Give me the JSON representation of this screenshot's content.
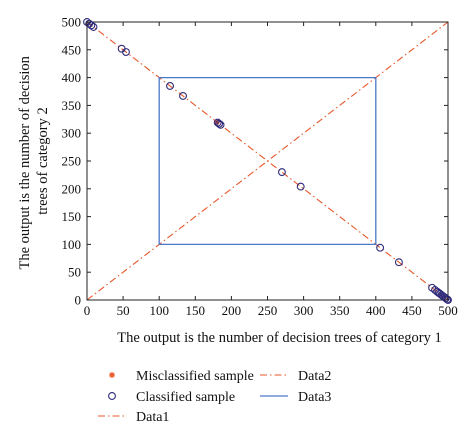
{
  "chart_data": {
    "type": "scatter",
    "xlabel": "The output is the number of decision trees of category 1",
    "ylabel": [
      "The output is the number of decision",
      "trees of category 2"
    ],
    "xlim": [
      0,
      500
    ],
    "ylim": [
      0,
      500
    ],
    "x_ticks": [
      0,
      50,
      100,
      150,
      200,
      250,
      300,
      350,
      400,
      450,
      500
    ],
    "y_ticks": [
      0,
      50,
      100,
      150,
      200,
      250,
      300,
      350,
      400,
      450,
      500
    ],
    "grid": false,
    "legend_position": "bottom",
    "series": [
      {
        "name": "Misclassified sample",
        "marker": "asterisk",
        "color": "#e8572a",
        "points": [
          [
            180,
            320
          ]
        ]
      },
      {
        "name": "Classified sample",
        "marker": "circle",
        "color": "#2e2a7a",
        "points": [
          [
            0,
            500
          ],
          [
            3,
            497
          ],
          [
            6,
            494
          ],
          [
            9,
            491
          ],
          [
            48,
            452
          ],
          [
            54,
            446
          ],
          [
            115,
            385
          ],
          [
            133,
            367
          ],
          [
            181,
            319
          ],
          [
            183,
            317
          ],
          [
            185,
            315
          ],
          [
            270,
            230
          ],
          [
            296,
            204
          ],
          [
            406,
            94
          ],
          [
            432,
            68
          ],
          [
            478,
            22
          ],
          [
            482,
            18
          ],
          [
            485,
            15
          ],
          [
            487,
            13
          ],
          [
            489,
            11
          ],
          [
            491,
            9
          ],
          [
            493,
            7
          ],
          [
            495,
            5
          ],
          [
            497,
            3
          ],
          [
            499,
            1
          ],
          [
            500,
            0
          ]
        ]
      },
      {
        "name": "Data1",
        "style": "dash-dot",
        "color": "#e8572a",
        "line": [
          [
            0,
            500
          ],
          [
            500,
            0
          ]
        ]
      },
      {
        "name": "Data2",
        "style": "dash-dot",
        "color": "#e8572a",
        "line": [
          [
            0,
            0
          ],
          [
            500,
            500
          ]
        ]
      },
      {
        "name": "Data3",
        "style": "solid",
        "color": "#4a78c8",
        "line": [
          [
            100,
            100
          ],
          [
            100,
            400
          ],
          [
            400,
            400
          ],
          [
            400,
            100
          ],
          [
            100,
            100
          ]
        ]
      }
    ]
  }
}
